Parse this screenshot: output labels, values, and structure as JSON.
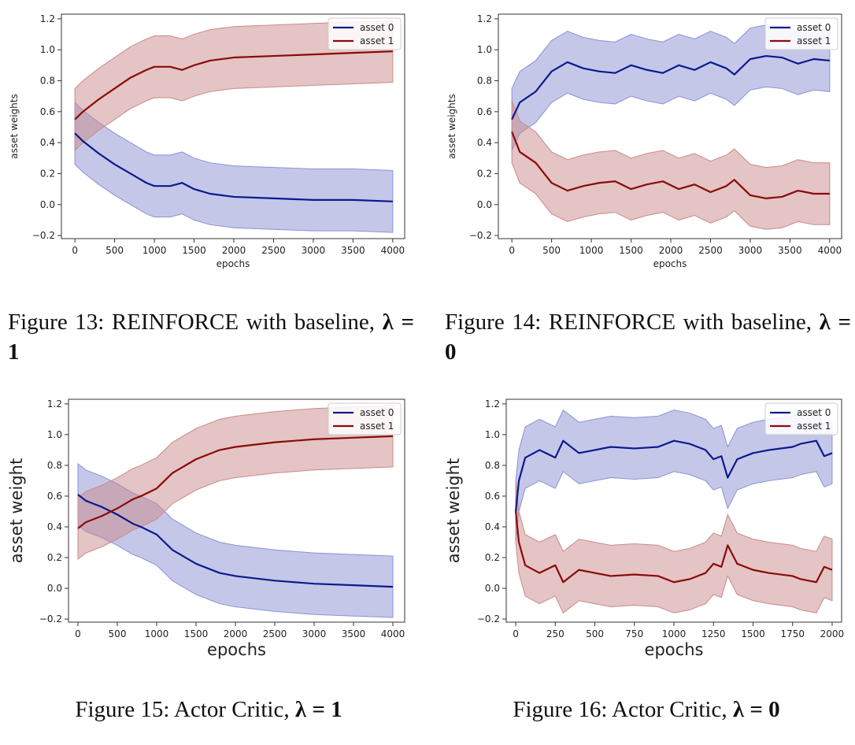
{
  "colors": {
    "asset0_line": "#0b1a8c",
    "asset0_band": "#8c90d4",
    "asset1_line": "#8b0a0a",
    "asset1_band": "#c98a8a"
  },
  "captions": [
    {
      "text": "Figure 13:  REINFORCE with baseline, ",
      "math": "λ = 1"
    },
    {
      "text": "Figure 14:  REINFORCE with baseline, ",
      "math": "λ = 0"
    },
    {
      "text": "Figure 15: Actor Critic, ",
      "math": "λ = 1"
    },
    {
      "text": "Figure 16: Actor Critic, ",
      "math": "λ = 0"
    }
  ],
  "chart_data": [
    {
      "type": "line",
      "xlabel": "epochs",
      "ylabel": "asset weights",
      "xlim": [
        -170,
        4150
      ],
      "ylim": [
        -0.22,
        1.23
      ],
      "xticks": [
        0,
        500,
        1000,
        1500,
        2000,
        2500,
        3000,
        3500,
        4000
      ],
      "yticks": [
        -0.2,
        0.0,
        0.2,
        0.4,
        0.6,
        0.8,
        1.0,
        1.2
      ],
      "legend": "top-right",
      "series": [
        {
          "name": "asset 0",
          "x": [
            0,
            100,
            300,
            500,
            700,
            900,
            1000,
            1200,
            1350,
            1500,
            1700,
            2000,
            2500,
            3000,
            3500,
            4000
          ],
          "y": [
            0.46,
            0.41,
            0.33,
            0.26,
            0.2,
            0.14,
            0.12,
            0.12,
            0.14,
            0.1,
            0.07,
            0.05,
            0.04,
            0.03,
            0.03,
            0.02
          ],
          "band": 0.2
        },
        {
          "name": "asset 1",
          "x": [
            0,
            100,
            300,
            500,
            700,
            900,
            1000,
            1200,
            1350,
            1500,
            1700,
            2000,
            2500,
            3000,
            3500,
            4000
          ],
          "y": [
            0.55,
            0.6,
            0.68,
            0.75,
            0.82,
            0.87,
            0.89,
            0.89,
            0.87,
            0.9,
            0.93,
            0.95,
            0.96,
            0.97,
            0.98,
            0.99
          ],
          "band": 0.2
        }
      ]
    },
    {
      "type": "line",
      "xlabel": "epochs",
      "ylabel": "asset weights",
      "xlim": [
        -170,
        4150
      ],
      "ylim": [
        -0.22,
        1.23
      ],
      "xticks": [
        0,
        500,
        1000,
        1500,
        2000,
        2500,
        3000,
        3500,
        4000
      ],
      "yticks": [
        -0.2,
        0.0,
        0.2,
        0.4,
        0.6,
        0.8,
        1.0,
        1.2
      ],
      "legend": "top-right",
      "series": [
        {
          "name": "asset 0",
          "x": [
            0,
            100,
            300,
            500,
            700,
            900,
            1100,
            1300,
            1500,
            1700,
            1900,
            2100,
            2300,
            2500,
            2700,
            2800,
            3000,
            3200,
            3400,
            3600,
            3800,
            4000
          ],
          "y": [
            0.55,
            0.66,
            0.73,
            0.86,
            0.92,
            0.88,
            0.86,
            0.85,
            0.9,
            0.87,
            0.85,
            0.9,
            0.87,
            0.92,
            0.88,
            0.84,
            0.94,
            0.96,
            0.95,
            0.91,
            0.94,
            0.93
          ],
          "band": 0.2
        },
        {
          "name": "asset 1",
          "x": [
            0,
            100,
            300,
            500,
            700,
            900,
            1100,
            1300,
            1500,
            1700,
            1900,
            2100,
            2300,
            2500,
            2700,
            2800,
            3000,
            3200,
            3400,
            3600,
            3800,
            4000
          ],
          "y": [
            0.47,
            0.34,
            0.27,
            0.14,
            0.09,
            0.12,
            0.14,
            0.15,
            0.1,
            0.13,
            0.15,
            0.1,
            0.13,
            0.08,
            0.12,
            0.16,
            0.06,
            0.04,
            0.05,
            0.09,
            0.07,
            0.07
          ],
          "band": 0.2
        }
      ]
    },
    {
      "type": "line",
      "xlabel": "epochs",
      "ylabel": "asset weight",
      "xlim": [
        -120,
        4150
      ],
      "ylim": [
        -0.22,
        1.23
      ],
      "xticks": [
        0,
        500,
        1000,
        1500,
        2000,
        2500,
        3000,
        3500,
        4000
      ],
      "yticks": [
        -0.2,
        0.0,
        0.2,
        0.4,
        0.6,
        0.8,
        1.0,
        1.2
      ],
      "legend": "top-right",
      "series": [
        {
          "name": "asset 0",
          "x": [
            0,
            100,
            200,
            300,
            500,
            700,
            800,
            1000,
            1200,
            1500,
            1800,
            2000,
            2500,
            3000,
            3500,
            4000
          ],
          "y": [
            0.61,
            0.57,
            0.55,
            0.53,
            0.48,
            0.42,
            0.4,
            0.35,
            0.25,
            0.16,
            0.1,
            0.08,
            0.05,
            0.03,
            0.02,
            0.01
          ],
          "band": 0.2
        },
        {
          "name": "asset 1",
          "x": [
            0,
            100,
            200,
            300,
            500,
            700,
            800,
            1000,
            1200,
            1500,
            1800,
            2000,
            2500,
            3000,
            3500,
            4000
          ],
          "y": [
            0.39,
            0.43,
            0.45,
            0.47,
            0.52,
            0.58,
            0.6,
            0.65,
            0.75,
            0.84,
            0.9,
            0.92,
            0.95,
            0.97,
            0.98,
            0.99
          ],
          "band": 0.2
        }
      ]
    },
    {
      "type": "line",
      "xlabel": "epochs",
      "ylabel": "asset weight",
      "xlim": [
        -60,
        2060
      ],
      "ylim": [
        -0.22,
        1.23
      ],
      "xticks": [
        0,
        250,
        500,
        750,
        1000,
        1250,
        1500,
        1750,
        2000
      ],
      "yticks": [
        -0.2,
        0.0,
        0.2,
        0.4,
        0.6,
        0.8,
        1.0,
        1.2
      ],
      "legend": "top-right",
      "series": [
        {
          "name": "asset 0",
          "x": [
            0,
            20,
            60,
            150,
            250,
            300,
            400,
            500,
            600,
            750,
            900,
            1000,
            1100,
            1200,
            1250,
            1300,
            1340,
            1400,
            1500,
            1600,
            1750,
            1800,
            1900,
            1950,
            2000
          ],
          "y": [
            0.5,
            0.7,
            0.85,
            0.9,
            0.85,
            0.96,
            0.88,
            0.9,
            0.92,
            0.91,
            0.92,
            0.96,
            0.94,
            0.9,
            0.84,
            0.86,
            0.72,
            0.84,
            0.88,
            0.9,
            0.92,
            0.94,
            0.96,
            0.86,
            0.88
          ],
          "band": 0.2
        },
        {
          "name": "asset 1",
          "x": [
            0,
            20,
            60,
            150,
            250,
            300,
            400,
            500,
            600,
            750,
            900,
            1000,
            1100,
            1200,
            1250,
            1300,
            1340,
            1400,
            1500,
            1600,
            1750,
            1800,
            1900,
            1950,
            2000
          ],
          "y": [
            0.5,
            0.3,
            0.15,
            0.1,
            0.15,
            0.04,
            0.12,
            0.1,
            0.08,
            0.09,
            0.08,
            0.04,
            0.06,
            0.1,
            0.16,
            0.14,
            0.28,
            0.16,
            0.12,
            0.1,
            0.08,
            0.06,
            0.04,
            0.14,
            0.12
          ],
          "band": 0.2
        }
      ]
    }
  ]
}
